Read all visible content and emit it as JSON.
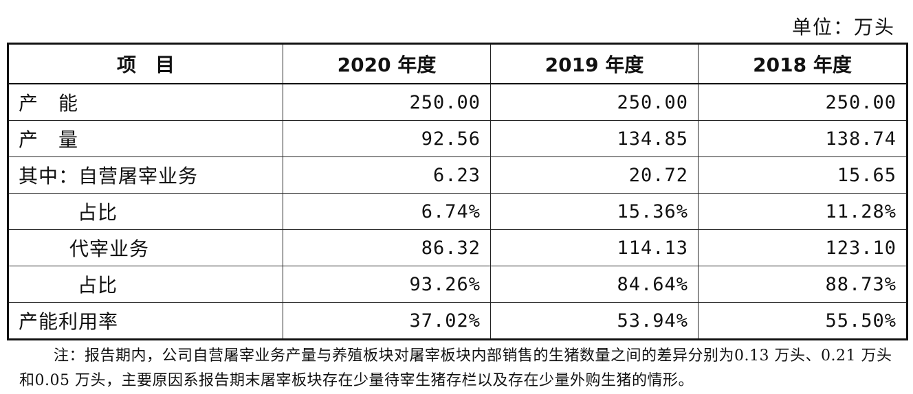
{
  "unit_label": "单位：万头",
  "table": {
    "headers": [
      "项　目",
      "2020 年度",
      "2019 年度",
      "2018 年度"
    ],
    "rows": [
      {
        "label": "产　能",
        "values": [
          "250.00",
          "250.00",
          "250.00"
        ]
      },
      {
        "label": "产　量",
        "values": [
          "92.56",
          "134.85",
          "138.74"
        ]
      },
      {
        "label": "其中：自营屠宰业务",
        "values": [
          "6.23",
          "20.72",
          "15.65"
        ]
      },
      {
        "label": "占比",
        "values": [
          "6.74%",
          "15.36%",
          "11.28%"
        ]
      },
      {
        "label": "代宰业务",
        "values": [
          "86.32",
          "114.13",
          "123.10"
        ]
      },
      {
        "label": "占比",
        "values": [
          "93.26%",
          "84.64%",
          "88.73%"
        ]
      },
      {
        "label": "产能利用率",
        "values": [
          "37.02%",
          "53.94%",
          "55.50%"
        ]
      }
    ]
  },
  "note": "注：报告期内，公司自营屠宰业务产量与养殖板块对屠宰板块内部销售的生猪数量之间的差异分别为0.13 万头、0.21 万头和0.05 万头，主要原因系报告期末屠宰板块存在少量待宰生猪存栏以及存在少量外购生猪的情形。"
}
